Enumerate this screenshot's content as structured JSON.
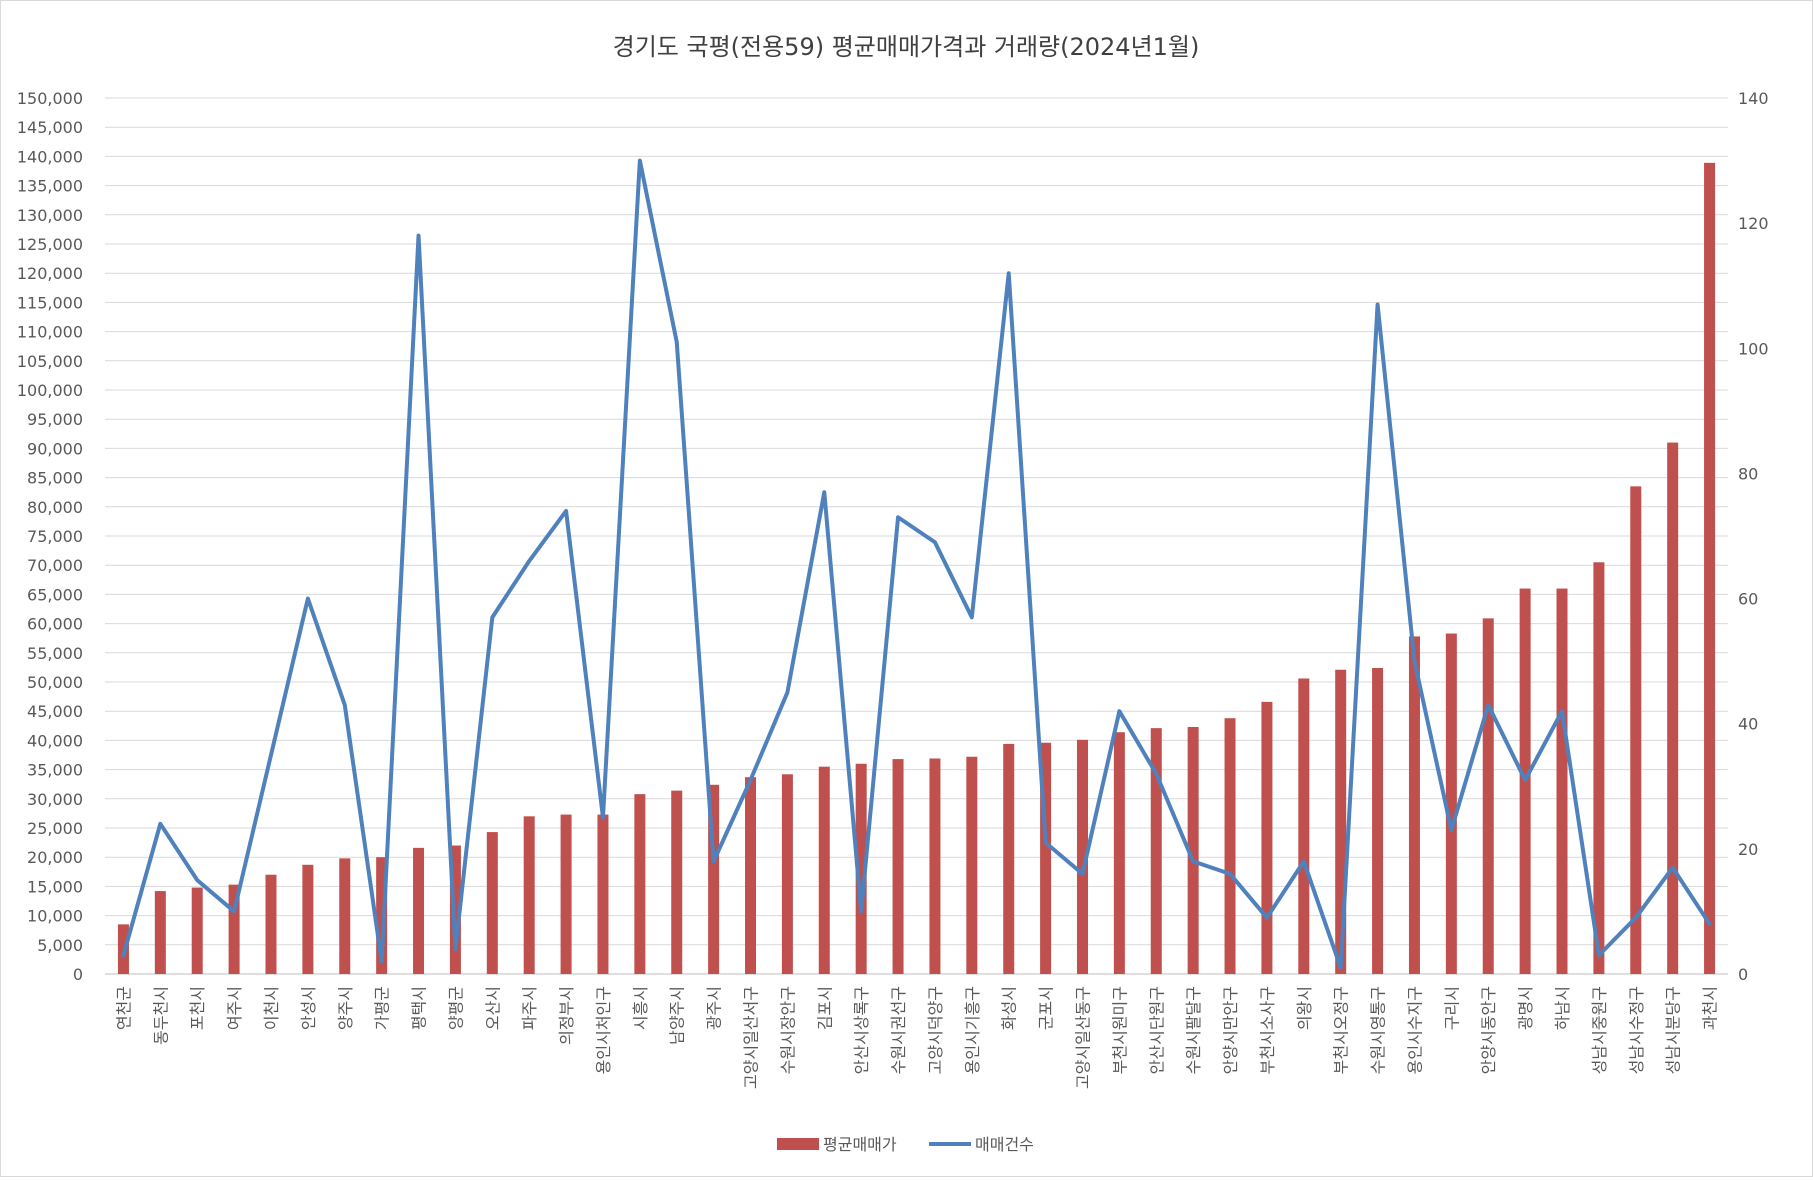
{
  "chart_data": {
    "type": "bar",
    "title": "경기도 국평(전용59) 평균매매가격과 거래량(2024년1월)",
    "categories": [
      "연천군",
      "동두천시",
      "포천시",
      "여주시",
      "이천시",
      "안성시",
      "양주시",
      "가평군",
      "평택시",
      "양평군",
      "오산시",
      "파주시",
      "의정부시",
      "용인시처인구",
      "시흥시",
      "남양주시",
      "광주시",
      "고양시일산서구",
      "수원시장안구",
      "김포시",
      "안산시상록구",
      "수원시권선구",
      "고양시덕양구",
      "용인시기흥구",
      "화성시",
      "군포시",
      "고양시일산동구",
      "부천시원미구",
      "안산시단원구",
      "수원시팔달구",
      "안양시만안구",
      "부천시소사구",
      "의왕시",
      "부천시오정구",
      "수원시영통구",
      "용인시수지구",
      "구리시",
      "안양시동안구",
      "광명시",
      "하남시",
      "성남시중원구",
      "성남시수정구",
      "성남시분당구",
      "과천시"
    ],
    "series": [
      {
        "name": "평균매매가",
        "type": "bar",
        "axis": "left",
        "color": "#C0504D",
        "values": [
          8500,
          14200,
          14800,
          15300,
          17000,
          18700,
          19800,
          20000,
          21600,
          22000,
          24300,
          27000,
          27300,
          27300,
          30800,
          31400,
          32400,
          33700,
          34200,
          35500,
          36000,
          36800,
          36900,
          37200,
          39400,
          39600,
          40100,
          41400,
          42100,
          42300,
          43800,
          46600,
          50600,
          52100,
          52400,
          57800,
          58300,
          60900,
          66000,
          66000,
          70500,
          83500,
          91000,
          138900
        ]
      },
      {
        "name": "매매건수",
        "type": "line",
        "axis": "right",
        "color": "#4F81BD",
        "values": [
          3,
          24,
          15,
          10,
          35,
          60,
          43,
          2,
          118,
          4,
          57,
          66,
          74,
          25,
          130,
          101,
          18,
          31,
          45,
          77,
          10,
          73,
          69,
          57,
          112,
          21,
          16,
          42,
          32,
          18,
          16,
          9,
          18,
          1,
          107,
          50,
          23,
          43,
          31,
          42,
          3,
          9,
          17,
          8
        ]
      }
    ],
    "y_left": {
      "min": 0,
      "max": 150000,
      "step": 5000,
      "ticks": [
        "0",
        "5,000",
        "10,000",
        "15,000",
        "20,000",
        "25,000",
        "30,000",
        "35,000",
        "40,000",
        "45,000",
        "50,000",
        "55,000",
        "60,000",
        "65,000",
        "70,000",
        "75,000",
        "80,000",
        "85,000",
        "90,000",
        "95,000",
        "100,000",
        "105,000",
        "110,000",
        "115,000",
        "120,000",
        "125,000",
        "130,000",
        "135,000",
        "140,000",
        "145,000",
        "150,000"
      ]
    },
    "y_right": {
      "min": 0,
      "max": 140,
      "step": 20,
      "ticks": [
        "0",
        "20",
        "40",
        "60",
        "80",
        "100",
        "120",
        "140"
      ]
    },
    "grid": true,
    "legend": {
      "position": "bottom",
      "items": [
        "평균매매가",
        "매매건수"
      ]
    }
  }
}
